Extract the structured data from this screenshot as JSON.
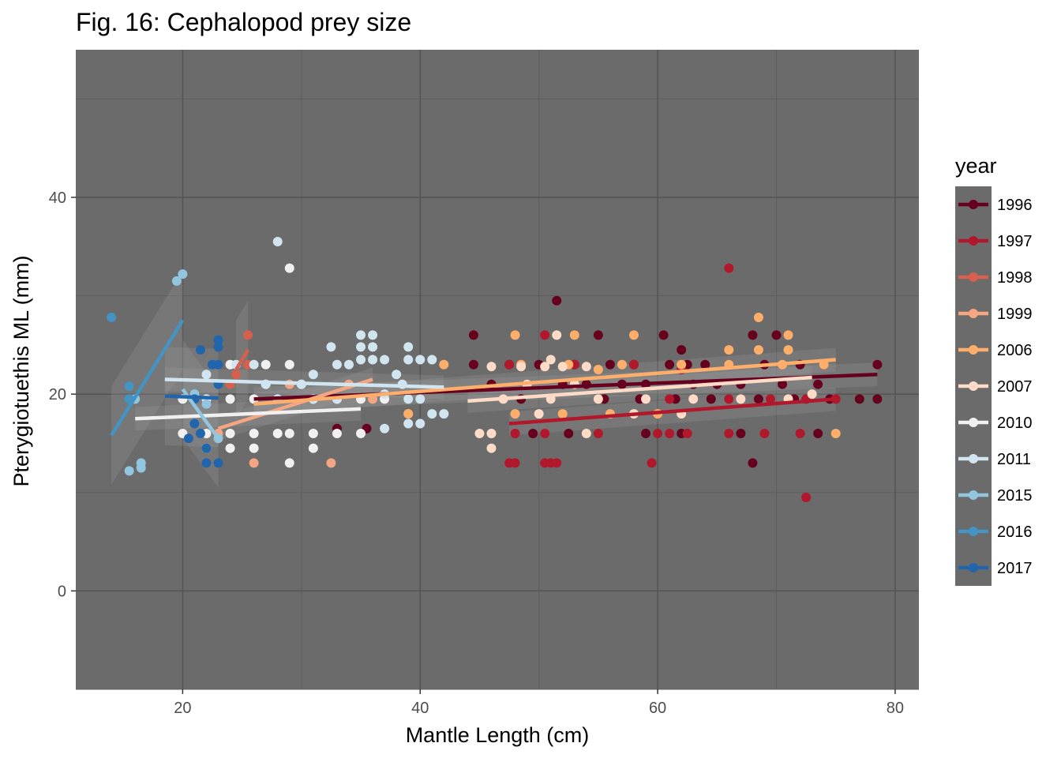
{
  "chart_data": {
    "type": "scatter",
    "title": "Fig. 16: Cephalopod prey size",
    "xlabel": "Mantle Length (cm)",
    "ylabel": "Pterygiotuethis ML (mm)",
    "xlim": [
      11,
      82
    ],
    "ylim": [
      -10,
      55
    ],
    "x_ticks": [
      20,
      40,
      60,
      80
    ],
    "y_ticks": [
      0,
      20,
      40
    ],
    "grid": true,
    "panel_color": "#6b6b6b",
    "legend": {
      "title": "year",
      "position": "right"
    },
    "series": [
      {
        "name": "1996",
        "color": "#67001f",
        "points": [
          [
            44.5,
            26
          ],
          [
            51.5,
            29.5
          ],
          [
            55,
            26
          ],
          [
            60.5,
            26
          ],
          [
            62,
            24.5
          ],
          [
            68,
            26
          ],
          [
            70,
            26
          ],
          [
            47.5,
            23
          ],
          [
            50,
            23
          ],
          [
            53,
            23
          ],
          [
            56,
            23
          ],
          [
            58,
            23
          ],
          [
            61,
            23
          ],
          [
            62.5,
            23
          ],
          [
            64,
            23
          ],
          [
            66,
            23
          ],
          [
            69,
            23
          ],
          [
            72,
            23
          ],
          [
            74,
            23
          ],
          [
            78.5,
            23
          ],
          [
            46,
            21
          ],
          [
            49,
            21
          ],
          [
            52,
            21
          ],
          [
            54,
            21
          ],
          [
            57,
            21
          ],
          [
            59,
            21
          ],
          [
            63,
            21
          ],
          [
            65,
            21
          ],
          [
            67,
            21
          ],
          [
            70.5,
            21
          ],
          [
            73.5,
            21
          ],
          [
            48.5,
            19.5
          ],
          [
            51,
            19.5
          ],
          [
            55.5,
            19.5
          ],
          [
            58.5,
            19.5
          ],
          [
            61.5,
            19.5
          ],
          [
            64.5,
            19.5
          ],
          [
            68.5,
            19.5
          ],
          [
            71.5,
            19.5
          ],
          [
            74.5,
            19.5
          ],
          [
            77,
            19.5
          ],
          [
            78.5,
            19.5
          ],
          [
            49.5,
            16
          ],
          [
            52.5,
            16
          ],
          [
            59,
            16
          ],
          [
            62,
            16
          ],
          [
            67,
            16
          ],
          [
            73.5,
            16
          ],
          [
            68,
            13
          ],
          [
            35.5,
            16.5
          ],
          [
            33,
            16.5
          ],
          [
            44.5,
            23
          ]
        ],
        "fit": [
          [
            26,
            19.5
          ],
          [
            78.5,
            22
          ]
        ]
      },
      {
        "name": "1997",
        "color": "#b2182b",
        "points": [
          [
            66,
            32.8
          ],
          [
            50.5,
            26
          ],
          [
            47.5,
            23
          ],
          [
            53,
            23
          ],
          [
            58,
            23
          ],
          [
            62,
            22.5
          ],
          [
            48,
            16
          ],
          [
            50.5,
            16
          ],
          [
            55,
            16
          ],
          [
            60,
            16
          ],
          [
            61,
            16
          ],
          [
            62.5,
            16
          ],
          [
            66,
            16
          ],
          [
            69,
            16
          ],
          [
            72,
            16
          ],
          [
            47.5,
            13
          ],
          [
            48,
            13
          ],
          [
            50.5,
            13
          ],
          [
            51,
            13
          ],
          [
            51.5,
            13
          ],
          [
            59.5,
            13
          ],
          [
            72.5,
            9.5
          ],
          [
            59,
            19.5
          ],
          [
            61,
            19.5
          ],
          [
            63,
            19.5
          ],
          [
            66,
            19.5
          ],
          [
            69.5,
            19.5
          ],
          [
            72.5,
            19.5
          ],
          [
            75,
            19.5
          ]
        ],
        "fit": [
          [
            47.5,
            17
          ],
          [
            75,
            19.5
          ]
        ]
      },
      {
        "name": "1998",
        "color": "#d6604d",
        "points": [
          [
            25.5,
            26
          ],
          [
            25.5,
            23
          ],
          [
            24.5,
            22
          ],
          [
            24,
            21
          ]
        ],
        "fit": [
          [
            24.5,
            22.5
          ],
          [
            25.5,
            24.5
          ]
        ]
      },
      {
        "name": "1999",
        "color": "#f4a582",
        "points": [
          [
            26,
            13
          ],
          [
            32.5,
            13
          ],
          [
            31,
            19.5
          ],
          [
            29,
            21
          ],
          [
            34,
            21
          ],
          [
            36,
            19.5
          ],
          [
            39,
            18
          ],
          [
            23,
            16
          ]
        ],
        "fit": [
          [
            23,
            16.5
          ],
          [
            36,
            21.5
          ]
        ]
      },
      {
        "name": "2006",
        "color": "#fdae6b",
        "points": [
          [
            48,
            26
          ],
          [
            53,
            26
          ],
          [
            58,
            26
          ],
          [
            66,
            24.5
          ],
          [
            68.5,
            27.8
          ],
          [
            71,
            26
          ],
          [
            71,
            24.5
          ],
          [
            68.5,
            24.5
          ],
          [
            42,
            23
          ],
          [
            48.5,
            23
          ],
          [
            52.5,
            23
          ],
          [
            57,
            23
          ],
          [
            62,
            23
          ],
          [
            66,
            23
          ],
          [
            70.5,
            23
          ],
          [
            74,
            23
          ],
          [
            48,
            18
          ],
          [
            52,
            18
          ],
          [
            56,
            18
          ],
          [
            60,
            18
          ],
          [
            75,
            16
          ],
          [
            39,
            18
          ],
          [
            55,
            22.5
          ]
        ],
        "fit": [
          [
            26,
            19
          ],
          [
            75,
            23.5
          ]
        ]
      },
      {
        "name": "2007",
        "color": "#fddbc7",
        "points": [
          [
            46,
            22.8
          ],
          [
            48.5,
            22.8
          ],
          [
            50.5,
            22.8
          ],
          [
            52,
            22.8
          ],
          [
            54,
            22.8
          ],
          [
            51.5,
            26
          ],
          [
            51,
            23.5
          ],
          [
            53,
            21
          ],
          [
            49,
            21
          ],
          [
            47,
            19.5
          ],
          [
            51,
            19.5
          ],
          [
            55,
            19.5
          ],
          [
            59,
            19.5
          ],
          [
            63,
            19.5
          ],
          [
            67,
            19.5
          ],
          [
            71,
            19.5
          ],
          [
            73,
            20
          ],
          [
            45,
            16
          ],
          [
            46,
            14.5
          ],
          [
            46,
            16
          ],
          [
            54,
            16
          ],
          [
            50,
            18
          ],
          [
            58,
            18
          ],
          [
            62,
            18
          ]
        ],
        "fit": [
          [
            44,
            19.3
          ],
          [
            73,
            21.7
          ]
        ]
      },
      {
        "name": "2010",
        "color": "#f0f0f0",
        "points": [
          [
            29,
            32.8
          ],
          [
            29,
            23
          ],
          [
            29,
            16
          ],
          [
            29,
            13
          ],
          [
            27,
            23
          ],
          [
            27,
            21
          ],
          [
            24,
            23
          ],
          [
            24,
            19.5
          ],
          [
            24,
            16
          ],
          [
            24,
            14.5
          ],
          [
            22,
            19.5
          ],
          [
            22,
            16
          ],
          [
            22,
            14.5
          ],
          [
            20,
            19.5
          ],
          [
            20,
            16
          ],
          [
            31,
            16
          ],
          [
            31,
            14.5
          ],
          [
            31,
            19.5
          ],
          [
            33,
            16
          ],
          [
            33,
            19.5
          ],
          [
            35,
            16
          ],
          [
            35,
            19.5
          ],
          [
            37,
            19.5
          ],
          [
            26,
            19.5
          ],
          [
            26,
            16
          ],
          [
            26,
            14.5
          ],
          [
            28,
            16
          ],
          [
            30,
            21
          ]
        ],
        "fit": [
          [
            16,
            17.5
          ],
          [
            35,
            18.5
          ]
        ]
      },
      {
        "name": "2011",
        "color": "#d1e5f0",
        "points": [
          [
            28,
            35.5
          ],
          [
            35,
            26
          ],
          [
            36,
            26
          ],
          [
            35,
            24.8
          ],
          [
            36,
            24.8
          ],
          [
            39,
            24.8
          ],
          [
            32.5,
            24.8
          ],
          [
            35,
            23.5
          ],
          [
            36,
            23.5
          ],
          [
            37,
            23.5
          ],
          [
            39,
            23.5
          ],
          [
            40,
            23.5
          ],
          [
            41,
            23.5
          ],
          [
            33,
            23
          ],
          [
            34,
            23
          ],
          [
            38,
            22
          ],
          [
            38.5,
            21
          ],
          [
            37,
            20
          ],
          [
            39,
            19.5
          ],
          [
            40,
            19.5
          ],
          [
            41,
            18
          ],
          [
            42,
            18
          ],
          [
            39,
            17
          ],
          [
            40,
            17
          ],
          [
            37,
            16.5
          ],
          [
            31,
            22
          ],
          [
            30,
            21
          ],
          [
            27,
            21
          ],
          [
            28,
            19.5
          ],
          [
            31,
            19.5
          ],
          [
            33,
            19.5
          ],
          [
            24.5,
            23
          ],
          [
            26,
            23
          ],
          [
            22,
            22
          ]
        ],
        "fit": [
          [
            18.5,
            21.5
          ],
          [
            42,
            20.7
          ]
        ]
      },
      {
        "name": "2015",
        "color": "#92c5de",
        "points": [
          [
            15.5,
            12.2
          ],
          [
            16.5,
            12.5
          ],
          [
            16.5,
            13
          ],
          [
            16,
            19.5
          ],
          [
            19.5,
            31.5
          ],
          [
            20,
            32.2
          ],
          [
            21,
            20
          ],
          [
            22,
            19
          ],
          [
            23,
            15.5
          ]
        ],
        "fit": [
          [
            20,
            20.5
          ],
          [
            23,
            15.5
          ]
        ]
      },
      {
        "name": "2016",
        "color": "#4393c3",
        "points": [
          [
            14,
            27.8
          ],
          [
            15.5,
            20.8
          ],
          [
            15.5,
            19.5
          ]
        ],
        "fit": [
          [
            14,
            15.8
          ],
          [
            20,
            27.5
          ]
        ]
      },
      {
        "name": "2017",
        "color": "#2166ac",
        "points": [
          [
            21.5,
            24.5
          ],
          [
            23,
            25.5
          ],
          [
            23,
            24.8
          ],
          [
            23,
            23
          ],
          [
            22.5,
            23
          ],
          [
            23,
            21
          ],
          [
            21,
            19.5
          ],
          [
            21.5,
            16
          ],
          [
            20.5,
            15.5
          ],
          [
            22,
            14.5
          ],
          [
            22,
            13
          ],
          [
            23,
            13
          ],
          [
            21,
            17
          ]
        ],
        "fit": [
          [
            18.5,
            19.8
          ],
          [
            23,
            19.6
          ]
        ]
      }
    ]
  }
}
